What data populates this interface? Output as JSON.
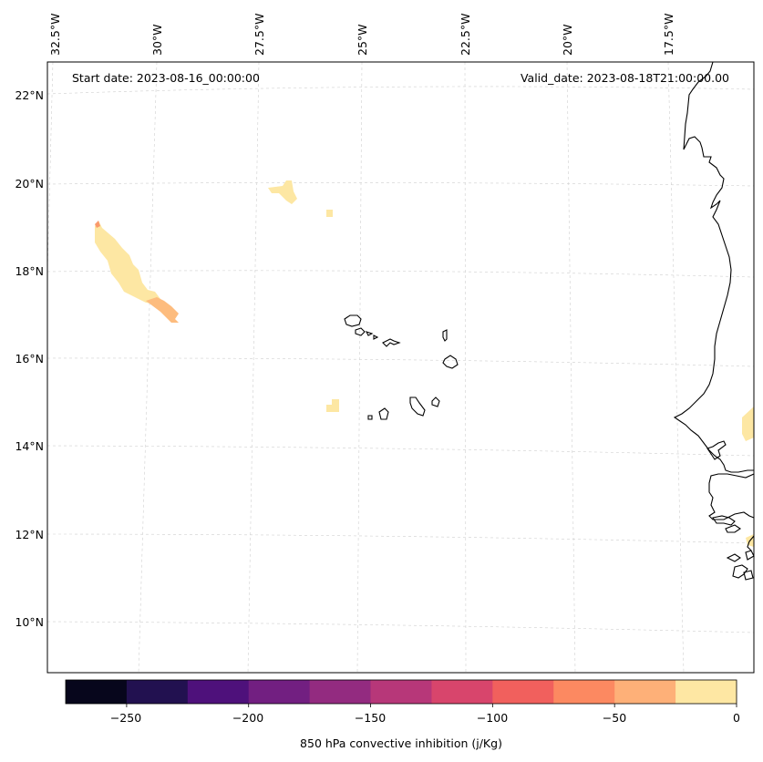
{
  "annotations": {
    "start_date": "Start date: 2023-08-16_00:00:00",
    "valid_date": "Valid_date: 2023-08-18T21:00:00.00"
  },
  "longitude_labels": [
    "32.5°W",
    "30°W",
    "27.5°W",
    "25°W",
    "22.5°W",
    "20°W",
    "17.5°W"
  ],
  "latitude_labels": [
    "22°N",
    "20°N",
    "18°N",
    "16°N",
    "14°N",
    "12°N",
    "10°N"
  ],
  "colorbar": {
    "label": "850 hPa convective inhibition (j/Kg)",
    "tick_labels": [
      "−250",
      "−200",
      "−150",
      "−100",
      "−50",
      "0"
    ],
    "levels": [
      -275,
      -250,
      -225,
      -200,
      -175,
      -150,
      -125,
      -100,
      -75,
      -50,
      -25,
      0
    ],
    "colors": [
      "#07061c",
      "#221150",
      "#4e117b",
      "#721f81",
      "#932b80",
      "#b73779",
      "#d8456c",
      "#f1605d",
      "#fc8961",
      "#feb078",
      "#fee7a3"
    ]
  },
  "map": {
    "gridlines": true,
    "coastline_color": "#000000",
    "fill_colors": {
      "light": "#fde7a3",
      "medium": "#fdbc7e",
      "dark": "#fa9a6c"
    }
  }
}
